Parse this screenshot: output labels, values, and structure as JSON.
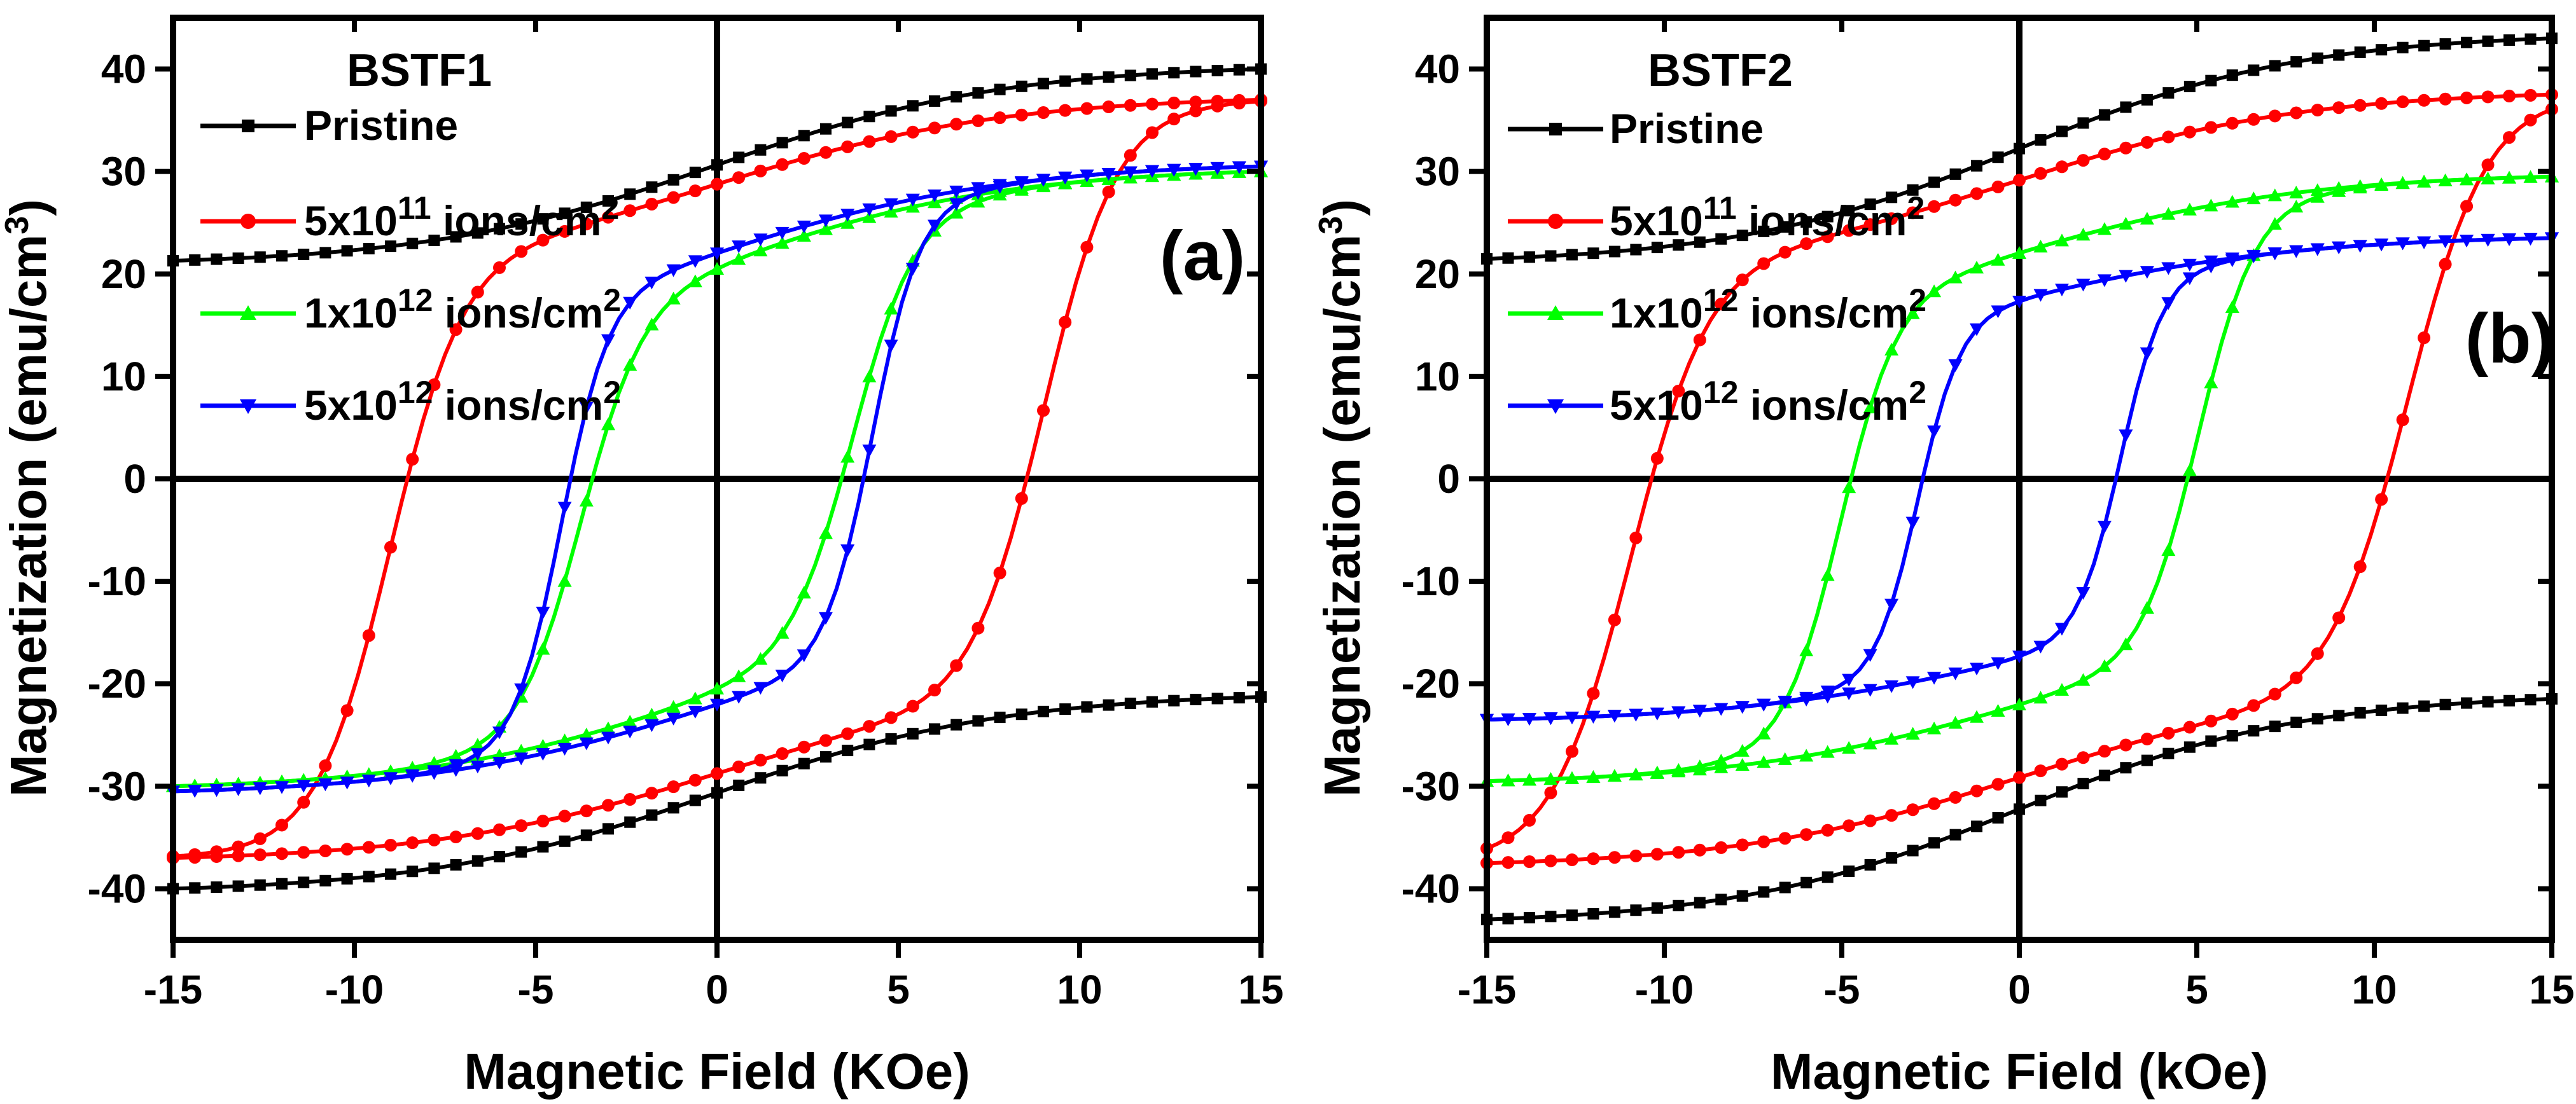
{
  "chart_data": [
    {
      "type": "line",
      "panel_label": "(a)",
      "legend_title": "BSTF1",
      "xlabel": "Magnetic Field (KOe)",
      "ylabel": "Magnetization (emu/cm",
      "ylabel_sup": "3",
      "ylabel_end": ")",
      "xlim": [
        -15,
        15
      ],
      "ylim": [
        -45,
        45
      ],
      "xticks": [
        -15,
        -10,
        -5,
        0,
        5,
        10,
        15
      ],
      "yticks": [
        -40,
        -30,
        -20,
        -10,
        0,
        10,
        20,
        30,
        40
      ],
      "xtick_labels": [
        "-15",
        "-10",
        "-5",
        "0",
        "5",
        "10",
        "15"
      ],
      "ytick_labels": [
        "-40",
        "-30",
        "-20",
        "-10",
        "0",
        "10",
        "20",
        "30",
        "40"
      ],
      "legend_placement": "top-left",
      "grid": false,
      "series": [
        {
          "name": "Pristine",
          "label": {
            "pre": "Pristine",
            "sup": "",
            "post": ""
          },
          "color": "#000000",
          "marker": "square",
          "ms": 40,
          "mr": 40,
          "hc": 0.6,
          "w": 2.4,
          "b": 0.32
        },
        {
          "name": "5x10^11 ions/cm^2",
          "label": {
            "pre": "5x10",
            "sup": "11",
            "post": " ions/cm"
          },
          "color": "#ff0000",
          "marker": "circle",
          "ms": 37,
          "mr": 30,
          "hc": 0.45,
          "w": 2.0,
          "b": 0.3
        },
        {
          "name": "1x10^12 ions/cm^2",
          "label": {
            "pre": "1x10",
            "sup": "12",
            "post": " ions/cm"
          },
          "color": "#00ff00",
          "marker": "triangle-up",
          "ms": 30,
          "mr": 20,
          "hc": 0.35,
          "w": 1.7,
          "b": 0.45
        },
        {
          "name": "5x10^12 ions/cm^2",
          "label": {
            "pre": "5x10",
            "sup": "12",
            "post": " ions/cm"
          },
          "color": "#0000ff",
          "marker": "triangle-down",
          "ms": 30.5,
          "mr": 23,
          "hc": 0.3,
          "w": 1.3,
          "b": 0.4
        }
      ]
    },
    {
      "type": "line",
      "panel_label": "(b)",
      "legend_title": "BSTF2",
      "xlabel": "Magnetic Field (kOe)",
      "ylabel": "Magnetization (emu/cm",
      "ylabel_sup": "3",
      "ylabel_end": ")",
      "xlim": [
        -15,
        15
      ],
      "ylim": [
        -45,
        45
      ],
      "xticks": [
        -15,
        -10,
        -5,
        0,
        5,
        10,
        15
      ],
      "yticks": [
        -40,
        -30,
        -20,
        -10,
        0,
        10,
        20,
        30,
        40
      ],
      "xtick_labels": [
        "-15",
        "-10",
        "-5",
        "0",
        "5",
        "10",
        "15"
      ],
      "ytick_labels": [
        "-40",
        "-30",
        "-20",
        "-10",
        "0",
        "10",
        "20",
        "30",
        "40"
      ],
      "legend_placement": "top-left",
      "grid": false,
      "series": [
        {
          "name": "Pristine",
          "label": {
            "pre": "Pristine",
            "sup": "",
            "post": ""
          },
          "color": "#000000",
          "marker": "square",
          "ms": 43,
          "mr": 40,
          "hc": 0.6,
          "w": 2.6,
          "b": 0.35
        },
        {
          "name": "5x10^11 ions/cm^2",
          "label": {
            "pre": "5x10",
            "sup": "11",
            "post": " ions/cm"
          },
          "color": "#ff0000",
          "marker": "circle",
          "ms": 37.5,
          "mr": 31,
          "hc": 0.45,
          "w": 2.2,
          "b": 0.3
        },
        {
          "name": "1x10^12 ions/cm^2",
          "label": {
            "pre": "1x10",
            "sup": "12",
            "post": " ions/cm"
          },
          "color": "#00ff00",
          "marker": "triangle-up",
          "ms": 29.5,
          "mr": 22,
          "hc": 0.35,
          "w": 1.6,
          "b": 0.35
        },
        {
          "name": "5x10^12 ions/cm^2",
          "label": {
            "pre": "5x10",
            "sup": "12",
            "post": " ions/cm"
          },
          "color": "#0000ff",
          "marker": "triangle-down",
          "ms": 23.5,
          "mr": 16,
          "hc": 0.3,
          "w": 1.2,
          "b": 0.35
        }
      ]
    }
  ]
}
